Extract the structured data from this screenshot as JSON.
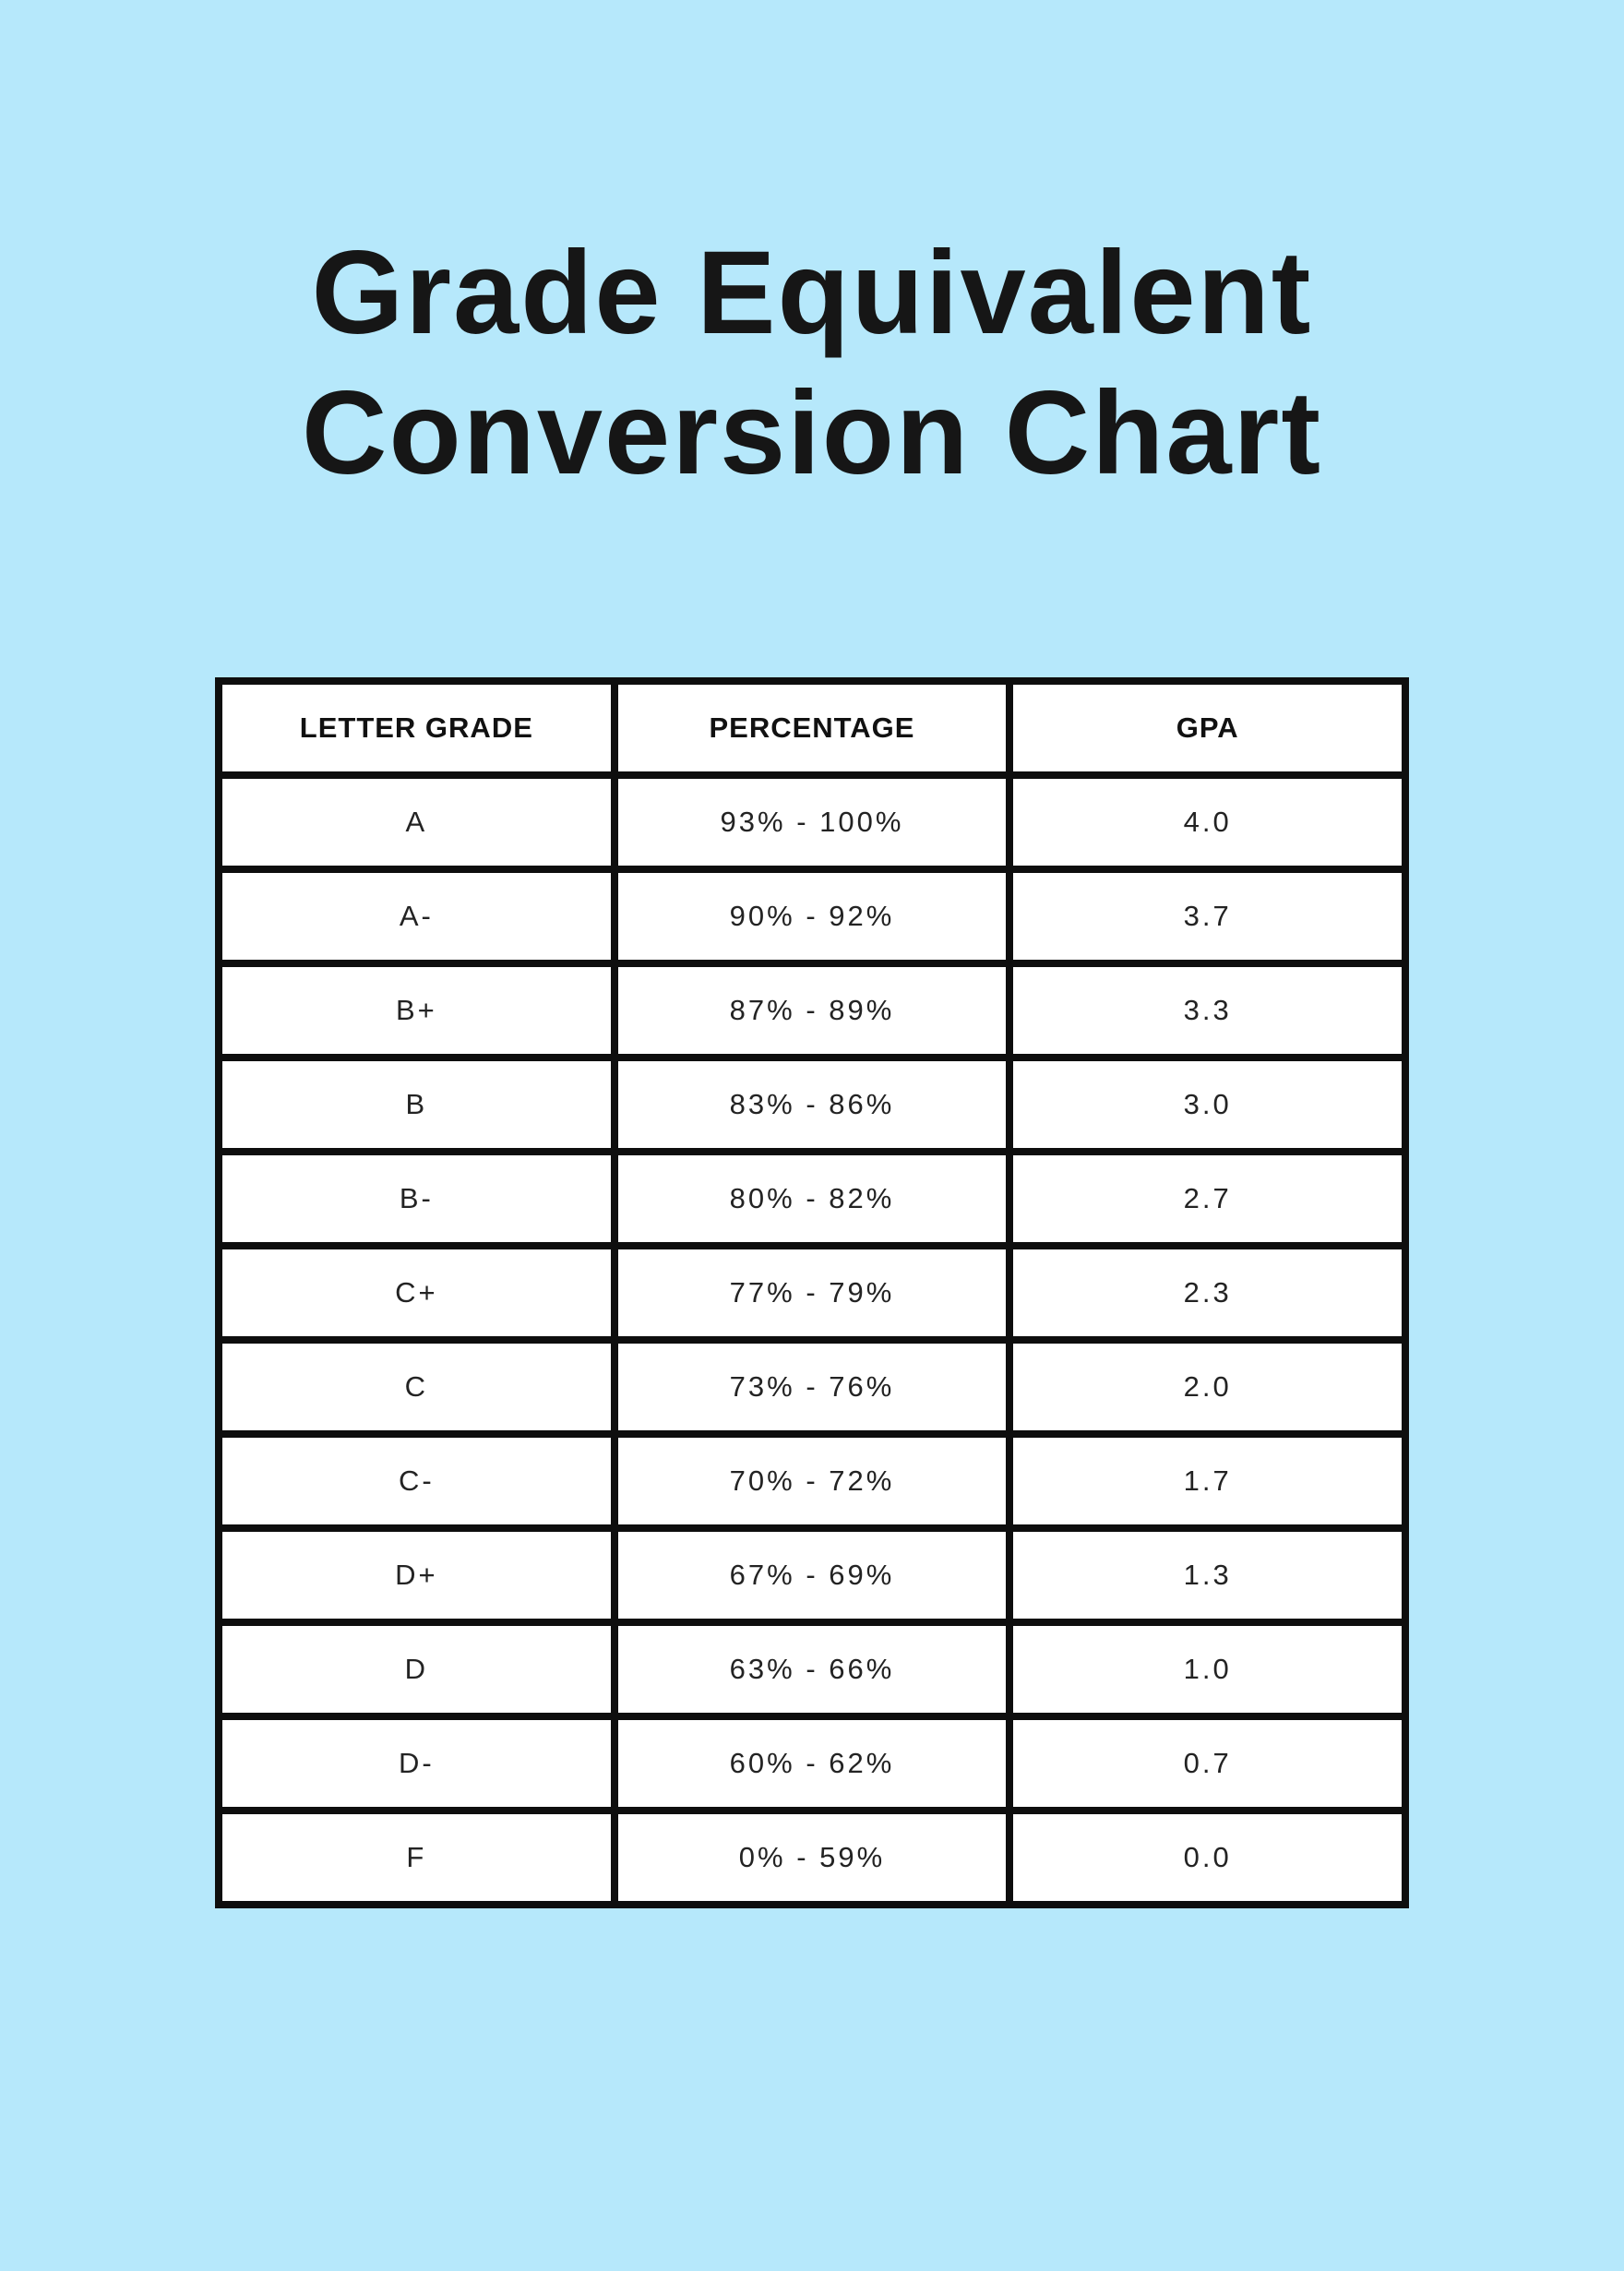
{
  "page": {
    "background_color": "#b6e8fb",
    "title_color": "#161616"
  },
  "title": {
    "line1": "Grade Equivalent",
    "line2": "Conversion Chart"
  },
  "table": {
    "border_color": "#0e0e0e",
    "cell_background": "#ffffff",
    "headers": [
      "LETTER GRADE",
      "PERCENTAGE",
      "GPA"
    ],
    "rows": [
      [
        "A",
        "93% - 100%",
        "4.0"
      ],
      [
        "A-",
        "90% - 92%",
        "3.7"
      ],
      [
        "B+",
        "87% - 89%",
        "3.3"
      ],
      [
        "B",
        "83% - 86%",
        "3.0"
      ],
      [
        "B-",
        "80% - 82%",
        "2.7"
      ],
      [
        "C+",
        "77% - 79%",
        "2.3"
      ],
      [
        "C",
        "73% - 76%",
        "2.0"
      ],
      [
        "C-",
        "70% - 72%",
        "1.7"
      ],
      [
        "D+",
        "67% - 69%",
        "1.3"
      ],
      [
        "D",
        "63% - 66%",
        "1.0"
      ],
      [
        "D-",
        "60% - 62%",
        "0.7"
      ],
      [
        "F",
        "0% - 59%",
        "0.0"
      ]
    ]
  }
}
